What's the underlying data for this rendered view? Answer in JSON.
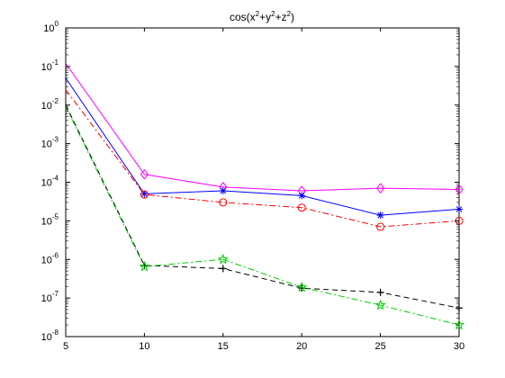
{
  "chart_data": {
    "type": "line",
    "title_parts": [
      "cos(x",
      "2",
      "+y",
      "2",
      "+z",
      "2",
      ")"
    ],
    "xlabel": "",
    "ylabel": "",
    "y_scale": "log",
    "xlim": [
      5,
      30
    ],
    "ylim": [
      1e-08,
      1
    ],
    "grid": false,
    "x_ticks": [
      5,
      10,
      15,
      20,
      25,
      30
    ],
    "y_ticks": [
      {
        "value": 1e-08,
        "base": "10",
        "exp": "-8"
      },
      {
        "value": 1e-07,
        "base": "10",
        "exp": "-7"
      },
      {
        "value": 1e-06,
        "base": "10",
        "exp": "-6"
      },
      {
        "value": 1e-05,
        "base": "10",
        "exp": "-5"
      },
      {
        "value": 0.0001,
        "base": "10",
        "exp": "-4"
      },
      {
        "value": 0.001,
        "base": "10",
        "exp": "-3"
      },
      {
        "value": 0.01,
        "base": "10",
        "exp": "-2"
      },
      {
        "value": 0.1,
        "base": "10",
        "exp": "-1"
      },
      {
        "value": 1,
        "base": "10",
        "exp": "0"
      }
    ],
    "x": [
      5,
      10,
      15,
      20,
      25,
      30
    ],
    "series": [
      {
        "color": "#ff00ff",
        "dash": "solid",
        "marker": "diamond",
        "marker_from": 1,
        "values": [
          0.12,
          0.00016,
          7.5e-05,
          6e-05,
          7e-05,
          6.5e-05
        ]
      },
      {
        "color": "#0000ff",
        "dash": "solid",
        "marker": "asterisk",
        "marker_from": 1,
        "values": [
          0.05,
          5e-05,
          6e-05,
          4.5e-05,
          1.4e-05,
          2e-05
        ]
      },
      {
        "color": "#ff0000",
        "dash": "dashdot",
        "marker": "circle",
        "marker_from": 1,
        "values": [
          0.025,
          4.8e-05,
          3e-05,
          2.2e-05,
          7e-06,
          1e-05
        ]
      },
      {
        "color": "#000000",
        "dash": "dashed",
        "marker": "plus",
        "marker_from": 1,
        "values": [
          0.01,
          7e-07,
          5.8e-07,
          1.8e-07,
          1.4e-07,
          5.5e-08
        ]
      },
      {
        "color": "#00cc00",
        "dash": "dashdot",
        "marker": "star",
        "marker_from": 1,
        "values": [
          0.009,
          6.5e-07,
          1e-06,
          1.9e-07,
          6.5e-08,
          2e-08
        ]
      }
    ]
  }
}
